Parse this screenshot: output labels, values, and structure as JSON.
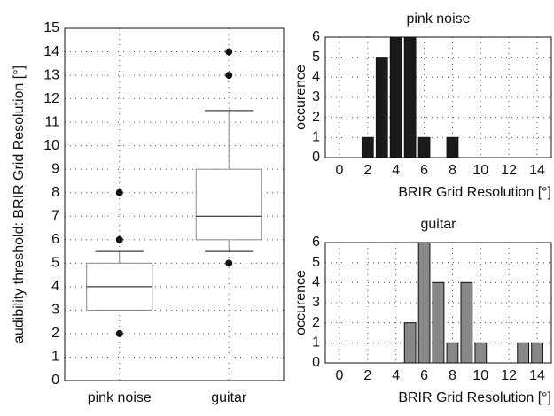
{
  "chart_data": [
    {
      "type": "box",
      "ylabel": "audibility threshold: BRIR Grid Resolution [°]",
      "categories": [
        "pink noise",
        "guitar"
      ],
      "boxes": [
        {
          "whisker_low": 3,
          "q1": 3,
          "median": 4,
          "q3": 5,
          "whisker_high": 5.5,
          "outliers": [
            2,
            6,
            8
          ]
        },
        {
          "whisker_low": 5.5,
          "q1": 6,
          "median": 7,
          "q3": 9,
          "whisker_high": 11.5,
          "outliers": [
            5,
            13,
            14
          ]
        }
      ],
      "color": "#888888",
      "ylim": [
        0,
        15
      ],
      "yticks": [
        0,
        1,
        2,
        3,
        4,
        5,
        6,
        7,
        8,
        9,
        10,
        11,
        12,
        13,
        14,
        15
      ],
      "grid": true
    },
    {
      "type": "bar",
      "title": "pink noise",
      "xlabel": "BRIR Grid Resolution [°]",
      "ylabel": "occurence",
      "x": [
        2,
        3,
        4,
        5,
        6,
        8
      ],
      "values": [
        1,
        5,
        6,
        6,
        1,
        1
      ],
      "color": "#1a1a1a",
      "xlim": [
        -1,
        15
      ],
      "xticks": [
        0,
        2,
        4,
        6,
        8,
        10,
        12,
        14
      ],
      "ylim": [
        0,
        6
      ],
      "yticks": [
        0,
        1,
        2,
        3,
        4,
        5,
        6
      ],
      "grid": true
    },
    {
      "type": "bar",
      "title": "guitar",
      "xlabel": "BRIR Grid Resolution [°]",
      "ylabel": "occurence",
      "x": [
        5,
        6,
        7,
        8,
        9,
        10,
        13,
        14
      ],
      "values": [
        2,
        6,
        4,
        1,
        4,
        1,
        1,
        1
      ],
      "color": "#888888",
      "xlim": [
        -1,
        15
      ],
      "xticks": [
        0,
        2,
        4,
        6,
        8,
        10,
        12,
        14
      ],
      "ylim": [
        0,
        6
      ],
      "yticks": [
        0,
        1,
        2,
        3,
        4,
        5,
        6
      ],
      "grid": true
    }
  ]
}
